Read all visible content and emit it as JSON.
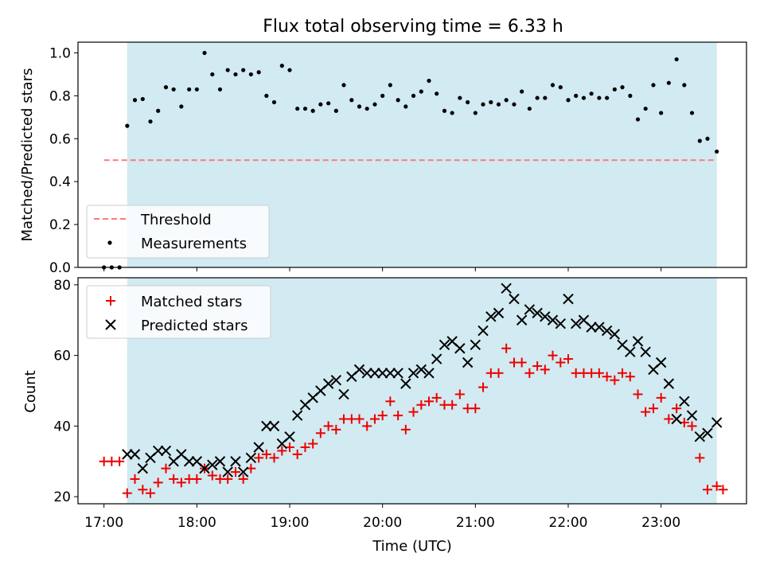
{
  "figure": {
    "title": "Flux total observing time = 6.33 h"
  },
  "colors": {
    "shade": "#add8e6",
    "threshold": "#ff7a7a",
    "measurements": "#000000",
    "matched": "#ee0000",
    "predicted": "#000000"
  },
  "chart_data": [
    {
      "type": "scatter",
      "panel": "top",
      "ylabel": "Matched/Predicted stars",
      "xlim": [
        16.72,
        23.92
      ],
      "ylim": [
        0,
        1.05
      ],
      "yticks": [
        0.0,
        0.2,
        0.4,
        0.6,
        0.8,
        1.0
      ],
      "ytick_labels": [
        "0.0",
        "0.2",
        "0.4",
        "0.6",
        "0.8",
        "1.0"
      ],
      "shaded_interval": [
        17.25,
        23.6
      ],
      "threshold": {
        "name": "Threshold",
        "y": 0.5,
        "x": [
          17.0,
          23.6
        ]
      },
      "legend": {
        "location": "lower-left",
        "entries": [
          "Threshold",
          "Measurements"
        ]
      },
      "series": [
        {
          "name": "Measurements",
          "x": [
            17.0,
            17.083,
            17.167,
            17.25,
            17.333,
            17.417,
            17.5,
            17.583,
            17.667,
            17.75,
            17.833,
            17.917,
            18.0,
            18.083,
            18.167,
            18.25,
            18.333,
            18.417,
            18.5,
            18.583,
            18.667,
            18.75,
            18.833,
            18.917,
            19.0,
            19.083,
            19.167,
            19.25,
            19.333,
            19.417,
            19.5,
            19.583,
            19.667,
            19.75,
            19.833,
            19.917,
            20.0,
            20.083,
            20.167,
            20.25,
            20.333,
            20.417,
            20.5,
            20.583,
            20.667,
            20.75,
            20.833,
            20.917,
            21.0,
            21.083,
            21.167,
            21.25,
            21.333,
            21.417,
            21.5,
            21.583,
            21.667,
            21.75,
            21.833,
            21.917,
            22.0,
            22.083,
            22.167,
            22.25,
            22.333,
            22.417,
            22.5,
            22.583,
            22.667,
            22.75,
            22.833,
            22.917,
            23.0,
            23.083,
            23.167,
            23.25,
            23.333,
            23.417,
            23.5,
            23.6
          ],
          "y": [
            0.0,
            0.0,
            0.0,
            0.66,
            0.78,
            0.785,
            0.68,
            0.73,
            0.84,
            0.83,
            0.75,
            0.83,
            0.83,
            1.0,
            0.9,
            0.83,
            0.92,
            0.9,
            0.92,
            0.9,
            0.91,
            0.8,
            0.77,
            0.94,
            0.92,
            0.74,
            0.74,
            0.73,
            0.76,
            0.765,
            0.73,
            0.85,
            0.78,
            0.75,
            0.74,
            0.76,
            0.8,
            0.85,
            0.78,
            0.75,
            0.8,
            0.82,
            0.87,
            0.81,
            0.73,
            0.72,
            0.79,
            0.77,
            0.72,
            0.76,
            0.77,
            0.76,
            0.78,
            0.76,
            0.82,
            0.74,
            0.79,
            0.79,
            0.85,
            0.84,
            0.78,
            0.8,
            0.79,
            0.81,
            0.79,
            0.79,
            0.83,
            0.84,
            0.8,
            0.69,
            0.74,
            0.85,
            0.72,
            0.86,
            0.97,
            0.85,
            0.72,
            0.59,
            0.6,
            0.54
          ]
        }
      ]
    },
    {
      "type": "scatter",
      "panel": "bottom",
      "xlabel": "Time (UTC)",
      "ylabel": "Count",
      "xlim": [
        16.72,
        23.92
      ],
      "ylim": [
        18,
        82
      ],
      "xticks": [
        17,
        18,
        19,
        20,
        21,
        22,
        23
      ],
      "xtick_labels": [
        "17:00",
        "18:00",
        "19:00",
        "20:00",
        "21:00",
        "22:00",
        "23:00"
      ],
      "yticks": [
        20,
        40,
        60,
        80
      ],
      "ytick_labels": [
        "20",
        "40",
        "60",
        "80"
      ],
      "shaded_interval": [
        17.25,
        23.6
      ],
      "legend": {
        "location": "top-left",
        "entries": [
          "Matched stars",
          "Predicted stars"
        ]
      },
      "series": [
        {
          "name": "Matched stars",
          "marker": "plus",
          "x": [
            17.0,
            17.083,
            17.167,
            17.25,
            17.333,
            17.417,
            17.5,
            17.583,
            17.667,
            17.75,
            17.833,
            17.917,
            18.0,
            18.083,
            18.167,
            18.25,
            18.333,
            18.417,
            18.5,
            18.583,
            18.667,
            18.75,
            18.833,
            18.917,
            19.0,
            19.083,
            19.167,
            19.25,
            19.333,
            19.417,
            19.5,
            19.583,
            19.667,
            19.75,
            19.833,
            19.917,
            20.0,
            20.083,
            20.167,
            20.25,
            20.333,
            20.417,
            20.5,
            20.583,
            20.667,
            20.75,
            20.833,
            20.917,
            21.0,
            21.083,
            21.167,
            21.25,
            21.333,
            21.417,
            21.5,
            21.583,
            21.667,
            21.75,
            21.833,
            21.917,
            22.0,
            22.083,
            22.167,
            22.25,
            22.333,
            22.417,
            22.5,
            22.583,
            22.667,
            22.75,
            22.833,
            22.917,
            23.0,
            23.083,
            23.167,
            23.25,
            23.333,
            23.417,
            23.5,
            23.6
          ],
          "y": [
            30,
            30,
            30,
            21,
            25,
            22,
            21,
            24,
            28,
            25,
            24,
            25,
            25,
            28,
            26,
            25,
            25,
            27,
            25,
            28,
            31,
            32,
            31,
            33,
            34,
            32,
            34,
            35,
            38,
            40,
            39,
            42,
            42,
            42,
            40,
            42,
            43,
            47,
            43,
            39,
            44,
            46,
            47,
            48,
            46,
            46,
            49,
            45,
            45,
            51,
            55,
            55,
            62,
            58,
            58,
            55,
            57,
            56,
            60,
            58,
            59,
            55,
            55,
            55,
            55,
            54,
            53,
            55,
            54,
            49,
            44,
            45,
            48,
            42,
            45,
            41,
            40,
            31,
            22,
            23
          ],
          "extra_point": {
            "x": 23.667,
            "y": 22
          }
        },
        {
          "name": "Predicted stars",
          "marker": "x",
          "x": [
            17.25,
            17.333,
            17.417,
            17.5,
            17.583,
            17.667,
            17.75,
            17.833,
            17.917,
            18.0,
            18.083,
            18.167,
            18.25,
            18.333,
            18.417,
            18.5,
            18.583,
            18.667,
            18.75,
            18.833,
            18.917,
            19.0,
            19.083,
            19.167,
            19.25,
            19.333,
            19.417,
            19.5,
            19.583,
            19.667,
            19.75,
            19.833,
            19.917,
            20.0,
            20.083,
            20.167,
            20.25,
            20.333,
            20.417,
            20.5,
            20.583,
            20.667,
            20.75,
            20.833,
            20.917,
            21.0,
            21.083,
            21.167,
            21.25,
            21.333,
            21.417,
            21.5,
            21.583,
            21.667,
            21.75,
            21.833,
            21.917,
            22.0,
            22.083,
            22.167,
            22.25,
            22.333,
            22.417,
            22.5,
            22.583,
            22.667,
            22.75,
            22.833,
            22.917,
            23.0,
            23.083,
            23.167,
            23.25,
            23.333,
            23.417,
            23.5,
            23.6
          ],
          "y": [
            32,
            32,
            28,
            31,
            33,
            33,
            30,
            32,
            30,
            30,
            28,
            29,
            30,
            27,
            30,
            27,
            31,
            34,
            40,
            40,
            35,
            37,
            43,
            46,
            48,
            50,
            52,
            53,
            49,
            54,
            56,
            55,
            55,
            55,
            55,
            55,
            52,
            55,
            56,
            55,
            59,
            63,
            64,
            62,
            58,
            63,
            67,
            71,
            72,
            79,
            76,
            70,
            73,
            72,
            71,
            70,
            69,
            76,
            69,
            70,
            68,
            68,
            67,
            66,
            63,
            61,
            64,
            61,
            56,
            58,
            52,
            42,
            47,
            43,
            37,
            38,
            41
          ]
        }
      ]
    }
  ]
}
